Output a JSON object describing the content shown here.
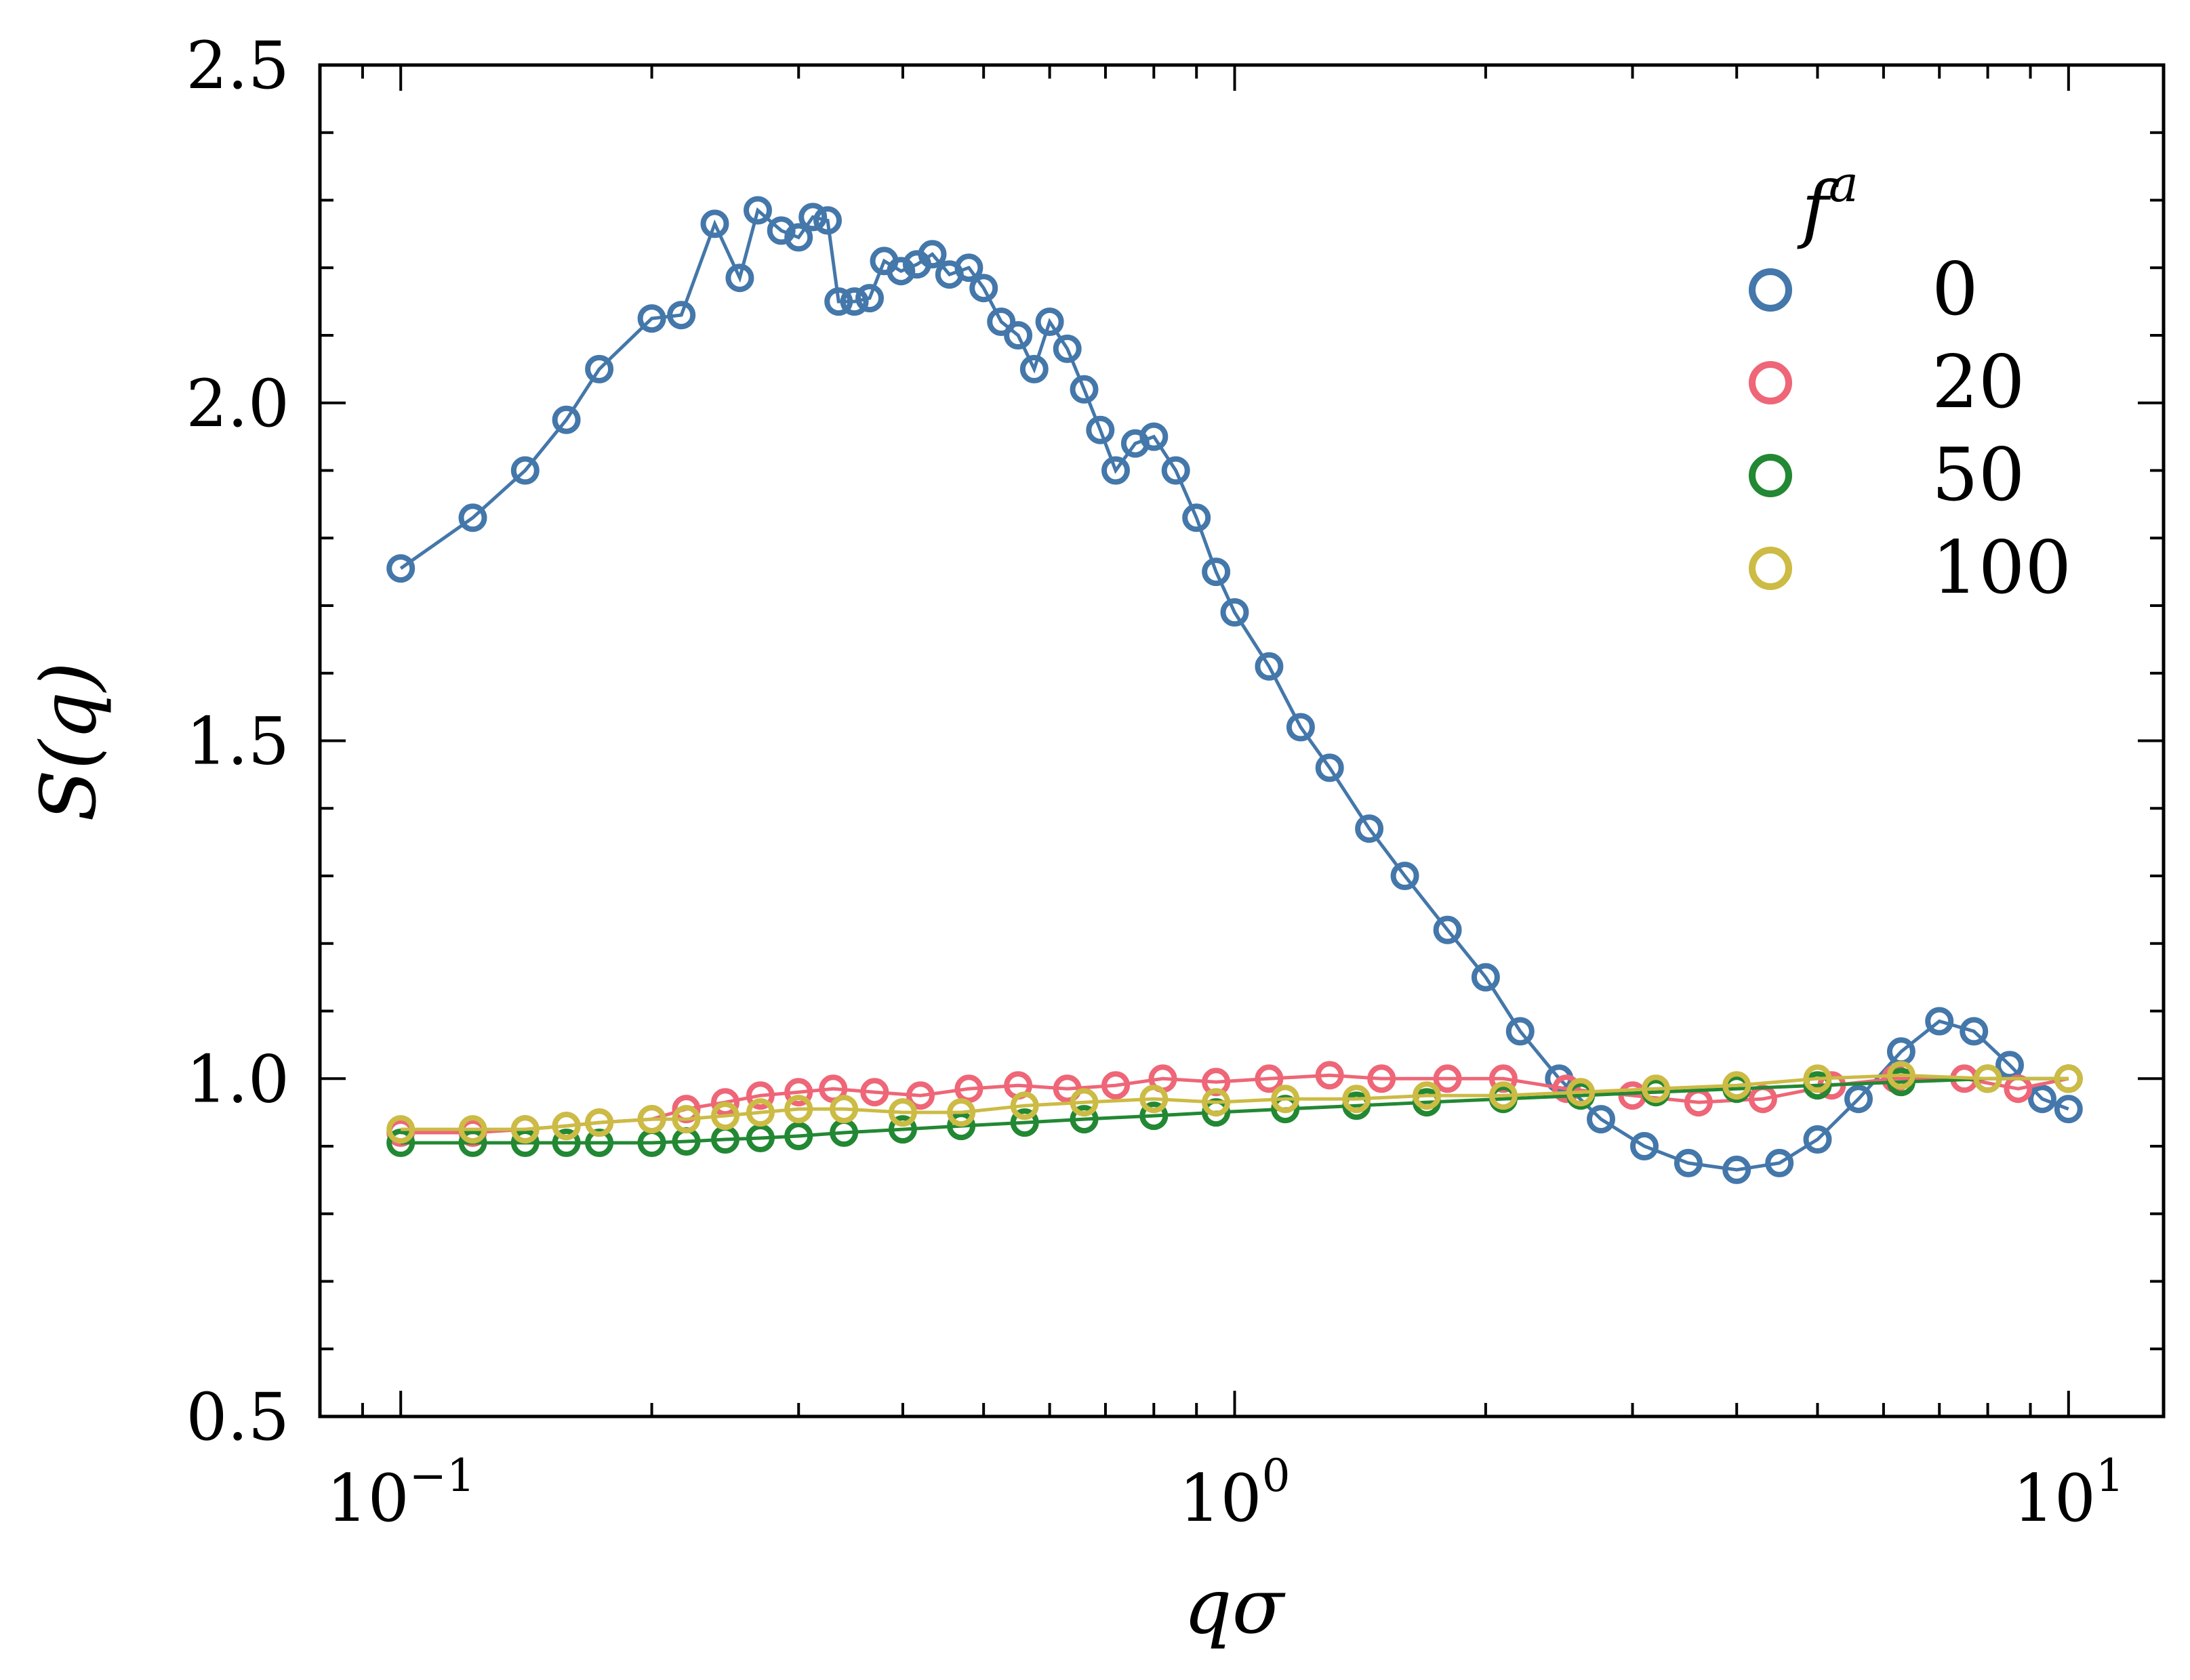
{
  "chart_data": {
    "type": "scatter",
    "title": "",
    "xlabel": "qσ",
    "ylabel": "S(q)",
    "xscale": "log",
    "xlim": [
      0.08,
      13
    ],
    "ylim": [
      0.5,
      2.5
    ],
    "x_ticks": [
      {
        "value": 0.1,
        "base": "10",
        "exp": "−1"
      },
      {
        "value": 1,
        "base": "10",
        "exp": "0"
      },
      {
        "value": 10,
        "base": "10",
        "exp": "1"
      }
    ],
    "y_ticks": [
      "0.5",
      "1.0",
      "1.5",
      "2.0",
      "2.5"
    ],
    "y_tick_values": [
      0.5,
      1.0,
      1.5,
      2.0,
      2.5
    ],
    "legend": {
      "title": "f^a",
      "title_base": "f",
      "title_sup": "a",
      "placement": "upper-right"
    },
    "series": [
      {
        "name": "0",
        "color": "#4477AA",
        "points": [
          [
            0.1,
            1.755
          ],
          [
            0.122,
            1.83
          ],
          [
            0.141,
            1.9
          ],
          [
            0.158,
            1.975
          ],
          [
            0.173,
            2.05
          ],
          [
            0.2,
            2.125
          ],
          [
            0.217,
            2.13
          ],
          [
            0.238,
            2.265
          ],
          [
            0.255,
            2.185
          ],
          [
            0.268,
            2.285
          ],
          [
            0.286,
            2.255
          ],
          [
            0.3,
            2.245
          ],
          [
            0.312,
            2.275
          ],
          [
            0.325,
            2.27
          ],
          [
            0.335,
            2.15
          ],
          [
            0.35,
            2.15
          ],
          [
            0.365,
            2.155
          ],
          [
            0.38,
            2.21
          ],
          [
            0.398,
            2.195
          ],
          [
            0.416,
            2.205
          ],
          [
            0.434,
            2.22
          ],
          [
            0.455,
            2.19
          ],
          [
            0.48,
            2.2
          ],
          [
            0.5,
            2.17
          ],
          [
            0.525,
            2.12
          ],
          [
            0.55,
            2.1
          ],
          [
            0.575,
            2.05
          ],
          [
            0.6,
            2.12
          ],
          [
            0.63,
            2.08
          ],
          [
            0.66,
            2.02
          ],
          [
            0.69,
            1.96
          ],
          [
            0.72,
            1.9
          ],
          [
            0.76,
            1.94
          ],
          [
            0.8,
            1.95
          ],
          [
            0.85,
            1.9
          ],
          [
            0.9,
            1.83
          ],
          [
            0.95,
            1.75
          ],
          [
            1.0,
            1.69
          ],
          [
            1.1,
            1.61
          ],
          [
            1.2,
            1.52
          ],
          [
            1.3,
            1.46
          ],
          [
            1.45,
            1.37
          ],
          [
            1.6,
            1.3
          ],
          [
            1.8,
            1.22
          ],
          [
            2.0,
            1.15
          ],
          [
            2.2,
            1.07
          ],
          [
            2.45,
            1.0
          ],
          [
            2.75,
            0.94
          ],
          [
            3.1,
            0.9
          ],
          [
            3.5,
            0.875
          ],
          [
            4.0,
            0.865
          ],
          [
            4.5,
            0.875
          ],
          [
            5.0,
            0.91
          ],
          [
            5.6,
            0.97
          ],
          [
            6.3,
            1.04
          ],
          [
            7.0,
            1.085
          ],
          [
            7.7,
            1.07
          ],
          [
            8.5,
            1.02
          ],
          [
            9.3,
            0.97
          ],
          [
            10.0,
            0.955
          ]
        ]
      },
      {
        "name": "20",
        "color": "#EE6677",
        "points": [
          [
            0.1,
            0.92
          ],
          [
            0.122,
            0.92
          ],
          [
            0.141,
            0.925
          ],
          [
            0.158,
            0.93
          ],
          [
            0.173,
            0.935
          ],
          [
            0.2,
            0.94
          ],
          [
            0.22,
            0.955
          ],
          [
            0.245,
            0.965
          ],
          [
            0.27,
            0.975
          ],
          [
            0.3,
            0.98
          ],
          [
            0.33,
            0.985
          ],
          [
            0.37,
            0.98
          ],
          [
            0.42,
            0.975
          ],
          [
            0.48,
            0.985
          ],
          [
            0.55,
            0.99
          ],
          [
            0.63,
            0.985
          ],
          [
            0.72,
            0.99
          ],
          [
            0.82,
            1.0
          ],
          [
            0.95,
            0.995
          ],
          [
            1.1,
            1.0
          ],
          [
            1.3,
            1.005
          ],
          [
            1.5,
            1.0
          ],
          [
            1.8,
            1.0
          ],
          [
            2.1,
            1.0
          ],
          [
            2.5,
            0.985
          ],
          [
            3.0,
            0.975
          ],
          [
            3.6,
            0.965
          ],
          [
            4.3,
            0.97
          ],
          [
            5.2,
            0.99
          ],
          [
            6.2,
            1.0
          ],
          [
            7.5,
            1.0
          ],
          [
            8.7,
            0.985
          ],
          [
            10.0,
            1.0
          ]
        ]
      },
      {
        "name": "50",
        "color": "#228833",
        "points": [
          [
            0.1,
            0.905
          ],
          [
            0.122,
            0.905
          ],
          [
            0.141,
            0.905
          ],
          [
            0.158,
            0.905
          ],
          [
            0.173,
            0.905
          ],
          [
            0.2,
            0.905
          ],
          [
            0.22,
            0.907
          ],
          [
            0.245,
            0.91
          ],
          [
            0.27,
            0.912
          ],
          [
            0.3,
            0.915
          ],
          [
            0.34,
            0.92
          ],
          [
            0.4,
            0.925
          ],
          [
            0.47,
            0.93
          ],
          [
            0.56,
            0.935
          ],
          [
            0.66,
            0.94
          ],
          [
            0.8,
            0.945
          ],
          [
            0.95,
            0.95
          ],
          [
            1.15,
            0.955
          ],
          [
            1.4,
            0.96
          ],
          [
            1.7,
            0.965
          ],
          [
            2.1,
            0.97
          ],
          [
            2.6,
            0.975
          ],
          [
            3.2,
            0.98
          ],
          [
            4.0,
            0.985
          ],
          [
            5.0,
            0.99
          ],
          [
            6.3,
            0.995
          ],
          [
            8.0,
            1.0
          ],
          [
            10.0,
            1.0
          ]
        ]
      },
      {
        "name": "100",
        "color": "#CCBB44",
        "points": [
          [
            0.1,
            0.925
          ],
          [
            0.122,
            0.925
          ],
          [
            0.141,
            0.925
          ],
          [
            0.158,
            0.93
          ],
          [
            0.173,
            0.935
          ],
          [
            0.2,
            0.94
          ],
          [
            0.22,
            0.94
          ],
          [
            0.245,
            0.945
          ],
          [
            0.27,
            0.95
          ],
          [
            0.3,
            0.955
          ],
          [
            0.34,
            0.955
          ],
          [
            0.4,
            0.95
          ],
          [
            0.47,
            0.95
          ],
          [
            0.56,
            0.96
          ],
          [
            0.66,
            0.965
          ],
          [
            0.8,
            0.97
          ],
          [
            0.95,
            0.965
          ],
          [
            1.15,
            0.97
          ],
          [
            1.4,
            0.97
          ],
          [
            1.7,
            0.975
          ],
          [
            2.1,
            0.975
          ],
          [
            2.6,
            0.98
          ],
          [
            3.2,
            0.985
          ],
          [
            4.0,
            0.99
          ],
          [
            5.0,
            1.0
          ],
          [
            6.3,
            1.005
          ],
          [
            8.0,
            1.0
          ],
          [
            10.0,
            1.0
          ]
        ]
      }
    ]
  }
}
